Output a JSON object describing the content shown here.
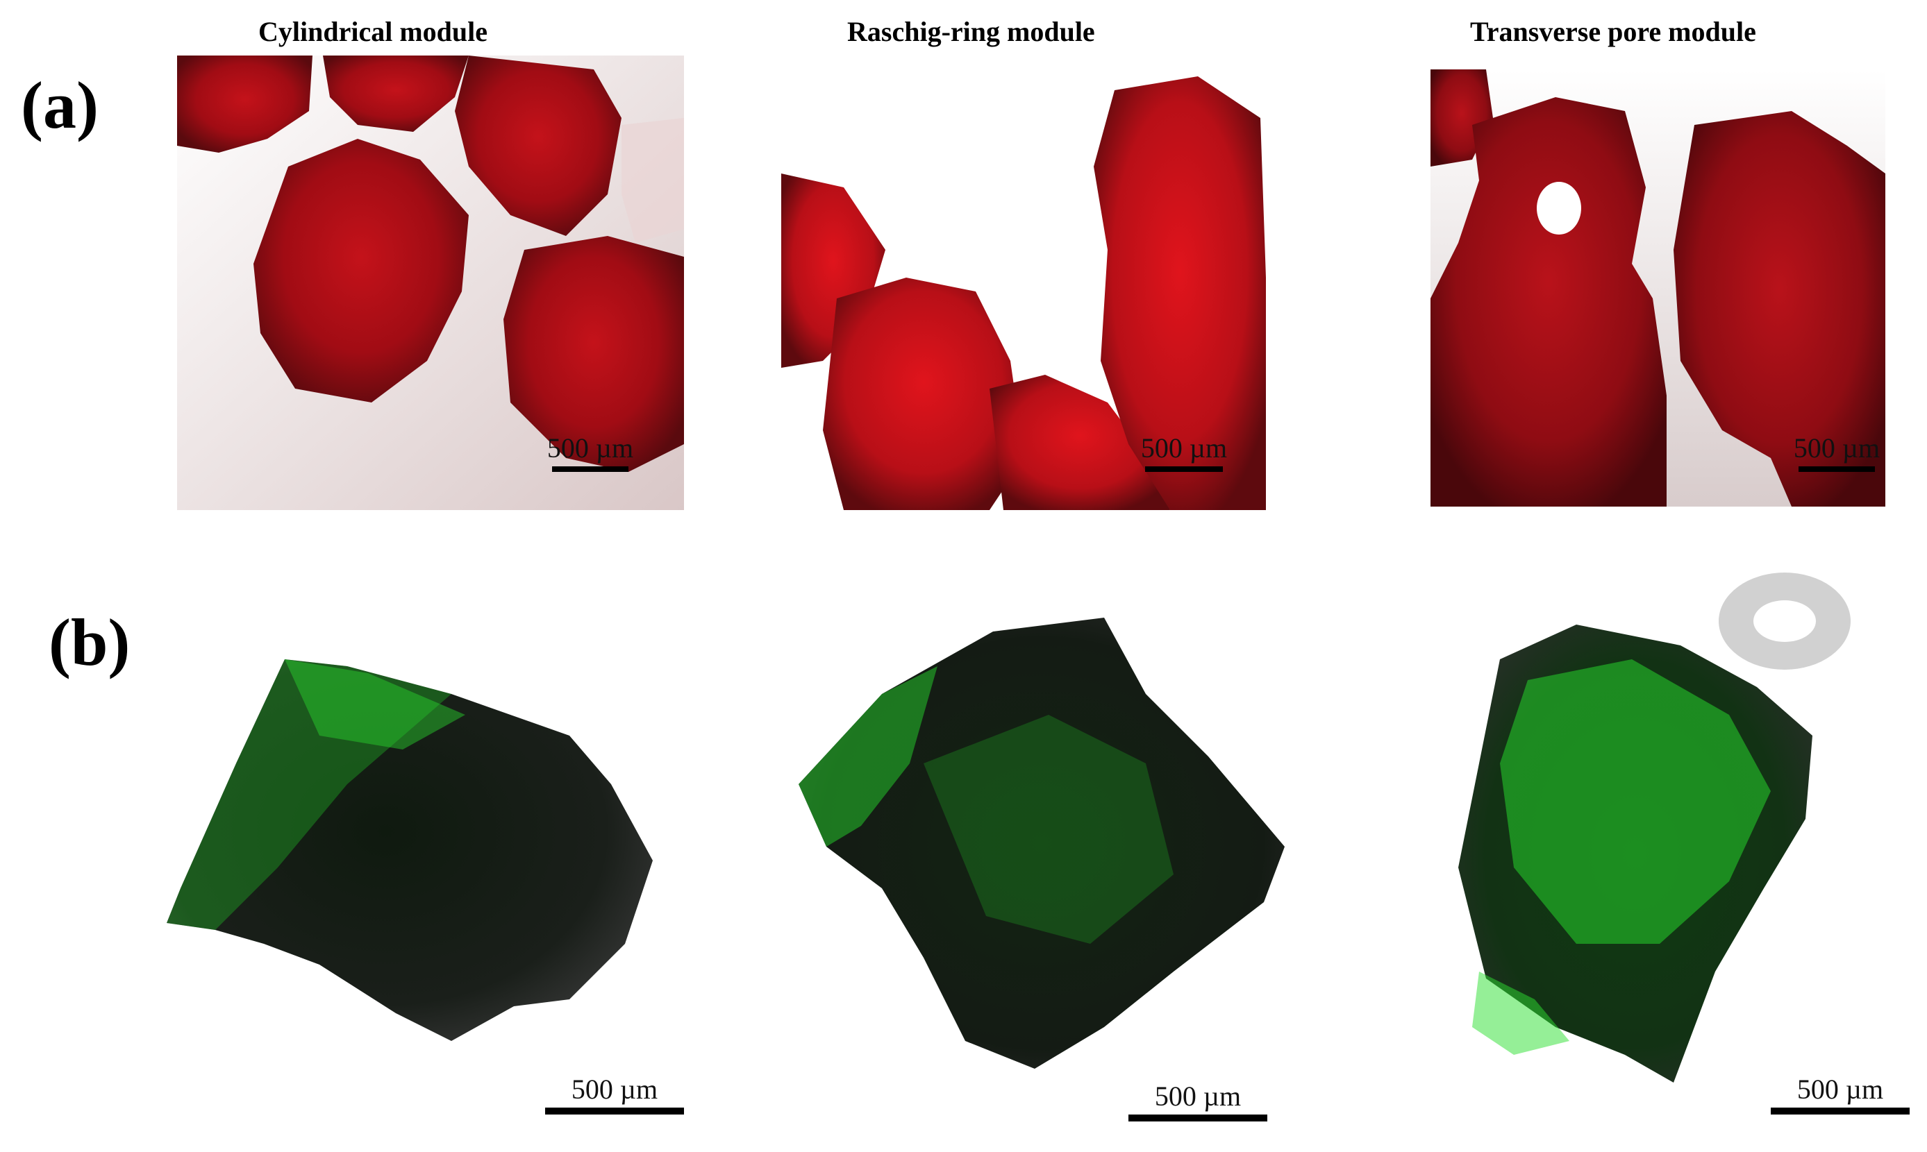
{
  "columns": [
    {
      "title": "Cylindrical module"
    },
    {
      "title": "Raschig-ring module"
    },
    {
      "title": "Transverse pore module"
    }
  ],
  "rows": [
    {
      "label": "(a)",
      "stain_color": "#e0141c"
    },
    {
      "label": "(b)",
      "stain_color": "#22e628"
    }
  ],
  "scale_bar_label": "500 µm"
}
